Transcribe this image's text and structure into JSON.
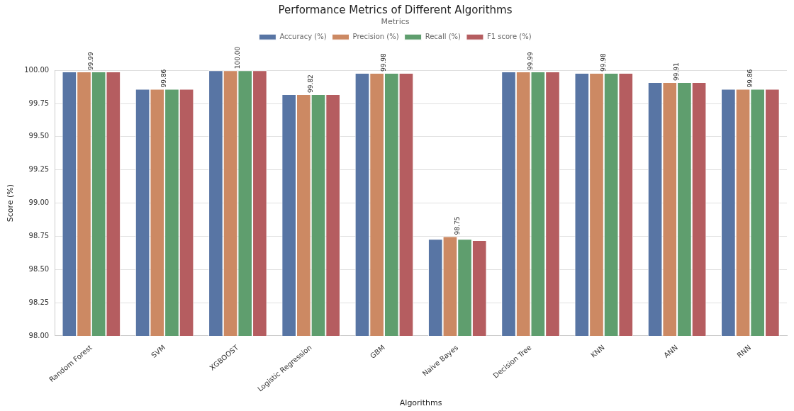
{
  "chart_data": {
    "type": "bar",
    "title": "Performance Metrics of Different Algorithms",
    "xlabel": "Algorithms",
    "ylabel": "Score (%)",
    "legend_title": "Metrics",
    "categories": [
      "Random Forest",
      "SVM",
      "XGBOOST",
      "Logistic Regression",
      "GBM",
      "Naive Bayes",
      "Decision Tree",
      "KNN",
      "ANN",
      "RNN"
    ],
    "series": [
      {
        "name": "Accuracy (%)",
        "color": "#5875a4",
        "values": [
          99.99,
          99.86,
          100.0,
          99.82,
          99.98,
          98.73,
          99.99,
          99.98,
          99.91,
          99.86
        ]
      },
      {
        "name": "Precision (%)",
        "color": "#cc8963",
        "values": [
          99.99,
          99.86,
          100.0,
          99.82,
          99.98,
          98.75,
          99.99,
          99.98,
          99.91,
          99.86
        ]
      },
      {
        "name": "Recall (%)",
        "color": "#5f9e6e",
        "values": [
          99.99,
          99.86,
          100.0,
          99.82,
          99.98,
          98.73,
          99.99,
          99.98,
          99.91,
          99.86
        ]
      },
      {
        "name": "F1 score (%)",
        "color": "#b55d60",
        "values": [
          99.99,
          99.86,
          100.0,
          99.82,
          99.98,
          98.72,
          99.99,
          99.98,
          99.91,
          99.86
        ]
      }
    ],
    "ylim": [
      98,
      100
    ],
    "yticks": [
      {
        "value": 98,
        "label": "98.00"
      },
      {
        "value": 98.25,
        "label": "98.25"
      },
      {
        "value": 98.5,
        "label": "98.50"
      },
      {
        "value": 98.75,
        "label": "98.75"
      },
      {
        "value": 99,
        "label": "99.00"
      },
      {
        "value": 99.25,
        "label": "99.25"
      },
      {
        "value": 99.5,
        "label": "99.50"
      },
      {
        "value": 99.75,
        "label": "99.75"
      },
      {
        "value": 100,
        "label": "100.00"
      }
    ],
    "annotations": [
      {
        "text": "99.99",
        "x": "Random Forest",
        "y": 99.99
      },
      {
        "text": "99.86",
        "x": "SVM",
        "y": 99.86
      },
      {
        "text": "100.00",
        "x": "XGBOOST",
        "y": 100.0
      },
      {
        "text": "99.82",
        "x": "Logistic Regression",
        "y": 99.82
      },
      {
        "text": "99.98",
        "x": "GBM",
        "y": 99.98
      },
      {
        "text": "98.75",
        "x": "Naive Bayes",
        "y": 98.75
      },
      {
        "text": "99.99",
        "x": "Decision Tree",
        "y": 99.99
      },
      {
        "text": "99.98",
        "x": "KNN",
        "y": 99.98
      },
      {
        "text": "99.91",
        "x": "ANN",
        "y": 99.91
      },
      {
        "text": "99.86",
        "x": "RNN",
        "y": 99.86
      }
    ],
    "grid": "y",
    "legend": "top"
  }
}
